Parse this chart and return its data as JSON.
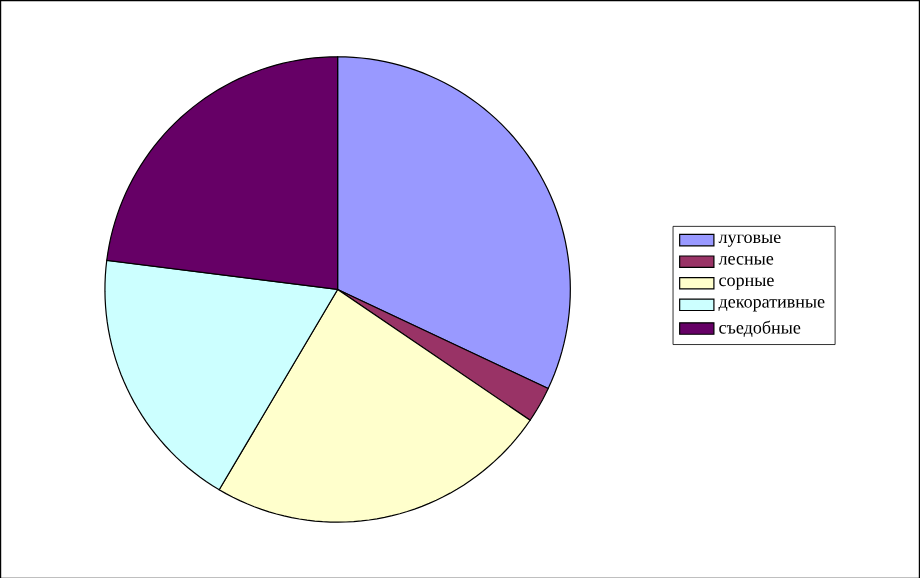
{
  "chart_data": {
    "type": "pie",
    "categories": [
      "луговые",
      "лесные",
      "сорные",
      "декоративные",
      "съедобные"
    ],
    "values": [
      32,
      2.5,
      24,
      18.5,
      23
    ],
    "colors": [
      "#9999ff",
      "#993366",
      "#ffffcc",
      "#ccffff",
      "#660066"
    ],
    "legend": "right"
  }
}
